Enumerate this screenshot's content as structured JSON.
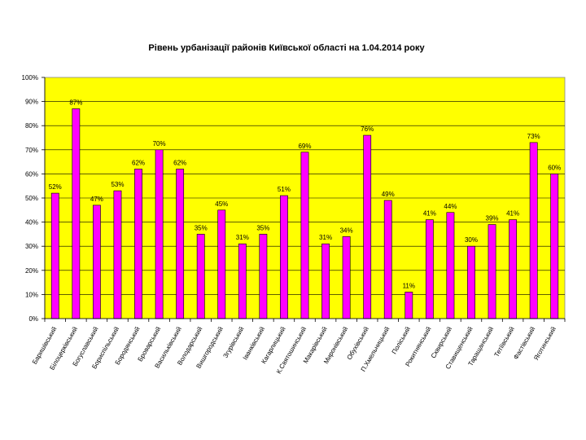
{
  "chart_data": {
    "type": "bar",
    "title": "Рівень урбанізації районів Київської області на 1.04.2014 року",
    "xlabel": "",
    "ylabel": "",
    "ylim": [
      0,
      100
    ],
    "y_ticks": [
      "0%",
      "10%",
      "20%",
      "30%",
      "40%",
      "50%",
      "60%",
      "70%",
      "80%",
      "90%",
      "100%"
    ],
    "grid": true,
    "legend": "none",
    "plot_background": "#ffff00",
    "bar_color": "#ff00ff",
    "categories": [
      "Баришівський",
      "Білоцерківський",
      "Богуславський",
      "Бориспільський",
      "Бородянський",
      "Броварський",
      "Васильківський",
      "Володарський",
      "Вишгородський",
      "Згурівський",
      "Іванківський",
      "Кагарлицький",
      "К.Святошинський",
      "Макарівський",
      "Миронівський",
      "Обухівський",
      "П.Хмельницький",
      "Поліський",
      "Рокитнянський",
      "Сквирський",
      "Ставищенський",
      "Таращанський",
      "Тетіївський",
      "Фастівський",
      "Яготинський"
    ],
    "values": [
      52,
      87,
      47,
      53,
      62,
      70,
      62,
      35,
      45,
      31,
      35,
      51,
      69,
      31,
      34,
      76,
      49,
      11,
      41,
      44,
      30,
      39,
      41,
      73,
      60
    ],
    "data_labels": [
      "52%",
      "87%",
      "47%",
      "53%",
      "62%",
      "70%",
      "62%",
      "35%",
      "45%",
      "31%",
      "35%",
      "51%",
      "69%",
      "31%",
      "34%",
      "76%",
      "49%",
      "11%",
      "41%",
      "44%",
      "30%",
      "39%",
      "41%",
      "73%",
      "60%"
    ]
  }
}
